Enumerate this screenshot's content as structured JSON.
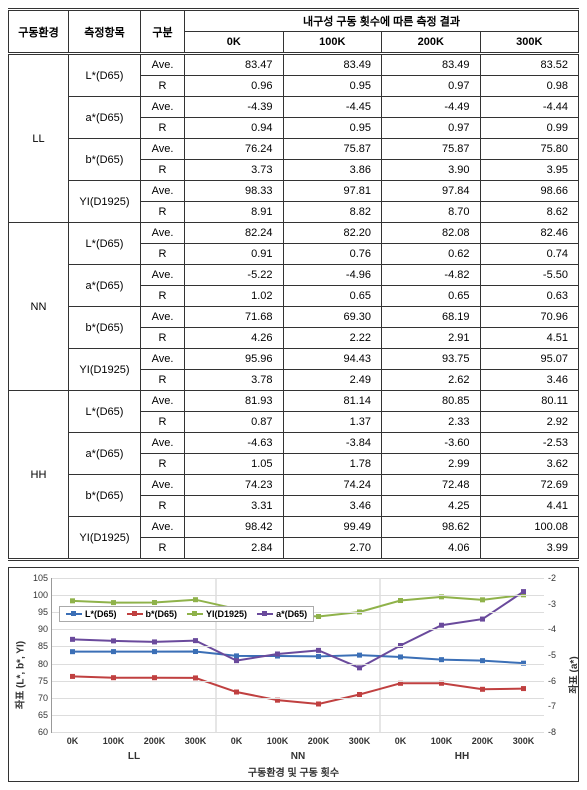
{
  "table": {
    "header_top": [
      "구동환경",
      "측정항목",
      "구분",
      "내구성 구동 횟수에 따른 측정 결과"
    ],
    "header_sub": [
      "0K",
      "100K",
      "200K",
      "300K"
    ],
    "groups": [
      {
        "env": "LL",
        "items": [
          {
            "metric": "L*(D65)",
            "rows": [
              [
                "Ave.",
                "83.47",
                "83.49",
                "83.49",
                "83.52"
              ],
              [
                "R",
                "0.96",
                "0.95",
                "0.97",
                "0.98"
              ]
            ]
          },
          {
            "metric": "a*(D65)",
            "rows": [
              [
                "Ave.",
                "-4.39",
                "-4.45",
                "-4.49",
                "-4.44"
              ],
              [
                "R",
                "0.94",
                "0.95",
                "0.97",
                "0.99"
              ]
            ]
          },
          {
            "metric": "b*(D65)",
            "rows": [
              [
                "Ave.",
                "76.24",
                "75.87",
                "75.87",
                "75.80"
              ],
              [
                "R",
                "3.73",
                "3.86",
                "3.90",
                "3.95"
              ]
            ]
          },
          {
            "metric": "YI(D1925)",
            "rows": [
              [
                "Ave.",
                "98.33",
                "97.81",
                "97.84",
                "98.66"
              ],
              [
                "R",
                "8.91",
                "8.82",
                "8.70",
                "8.62"
              ]
            ]
          }
        ]
      },
      {
        "env": "NN",
        "items": [
          {
            "metric": "L*(D65)",
            "rows": [
              [
                "Ave.",
                "82.24",
                "82.20",
                "82.08",
                "82.46"
              ],
              [
                "R",
                "0.91",
                "0.76",
                "0.62",
                "0.74"
              ]
            ]
          },
          {
            "metric": "a*(D65)",
            "rows": [
              [
                "Ave.",
                "-5.22",
                "-4.96",
                "-4.82",
                "-5.50"
              ],
              [
                "R",
                "1.02",
                "0.65",
                "0.65",
                "0.63"
              ]
            ]
          },
          {
            "metric": "b*(D65)",
            "rows": [
              [
                "Ave.",
                "71.68",
                "69.30",
                "68.19",
                "70.96"
              ],
              [
                "R",
                "4.26",
                "2.22",
                "2.91",
                "4.51"
              ]
            ]
          },
          {
            "metric": "YI(D1925)",
            "rows": [
              [
                "Ave.",
                "95.96",
                "94.43",
                "93.75",
                "95.07"
              ],
              [
                "R",
                "3.78",
                "2.49",
                "2.62",
                "3.46"
              ]
            ]
          }
        ]
      },
      {
        "env": "HH",
        "items": [
          {
            "metric": "L*(D65)",
            "rows": [
              [
                "Ave.",
                "81.93",
                "81.14",
                "80.85",
                "80.11"
              ],
              [
                "R",
                "0.87",
                "1.37",
                "2.33",
                "2.92"
              ]
            ]
          },
          {
            "metric": "a*(D65)",
            "rows": [
              [
                "Ave.",
                "-4.63",
                "-3.84",
                "-3.60",
                "-2.53"
              ],
              [
                "R",
                "1.05",
                "1.78",
                "2.99",
                "3.62"
              ]
            ]
          },
          {
            "metric": "b*(D65)",
            "rows": [
              [
                "Ave.",
                "74.23",
                "74.24",
                "72.48",
                "72.69"
              ],
              [
                "R",
                "3.31",
                "3.46",
                "4.25",
                "4.41"
              ]
            ]
          },
          {
            "metric": "YI(D1925)",
            "rows": [
              [
                "Ave.",
                "98.42",
                "99.49",
                "98.62",
                "100.08"
              ],
              [
                "R",
                "2.84",
                "2.70",
                "4.06",
                "3.99"
              ]
            ]
          }
        ]
      }
    ]
  },
  "chart": {
    "categories": [
      "0K",
      "100K",
      "200K",
      "300K",
      "0K",
      "100K",
      "200K",
      "300K",
      "0K",
      "100K",
      "200K",
      "300K"
    ],
    "groups": [
      "LL",
      "NN",
      "HH"
    ],
    "y_left": {
      "min": 60,
      "max": 105,
      "step": 5,
      "title": "좌표 (L*, b*, YI)"
    },
    "y_right": {
      "min": -8,
      "max": -2,
      "step": 1,
      "title": "좌표 (a*)"
    },
    "x_title": "구동환경 및 구동 횟수",
    "series": [
      {
        "name": "L*(D65)",
        "axis": "left",
        "color": "#3b6fb6",
        "label": "L*(D65)",
        "values": [
          83.47,
          83.49,
          83.49,
          83.52,
          82.24,
          82.2,
          82.08,
          82.46,
          81.93,
          81.14,
          80.85,
          80.11
        ]
      },
      {
        "name": "b*(D65)",
        "axis": "left",
        "color": "#c04040",
        "label": "b*(D65)",
        "values": [
          76.24,
          75.87,
          75.87,
          75.8,
          71.68,
          69.3,
          68.19,
          70.96,
          74.23,
          74.24,
          72.48,
          72.69
        ]
      },
      {
        "name": "YI(D1925)",
        "axis": "left",
        "color": "#8fb24a",
        "label": "YI(D1925)",
        "values": [
          98.33,
          97.81,
          97.84,
          98.66,
          95.96,
          94.43,
          93.75,
          95.07,
          98.42,
          99.49,
          98.62,
          100.08
        ]
      },
      {
        "name": "a*(D65)",
        "axis": "right",
        "color": "#6a4a9c",
        "label": "a*(D65)",
        "values": [
          -4.39,
          -4.45,
          -4.49,
          -4.44,
          -5.22,
          -4.96,
          -4.82,
          -5.5,
          -4.63,
          -3.84,
          -3.6,
          -2.53
        ]
      }
    ]
  }
}
